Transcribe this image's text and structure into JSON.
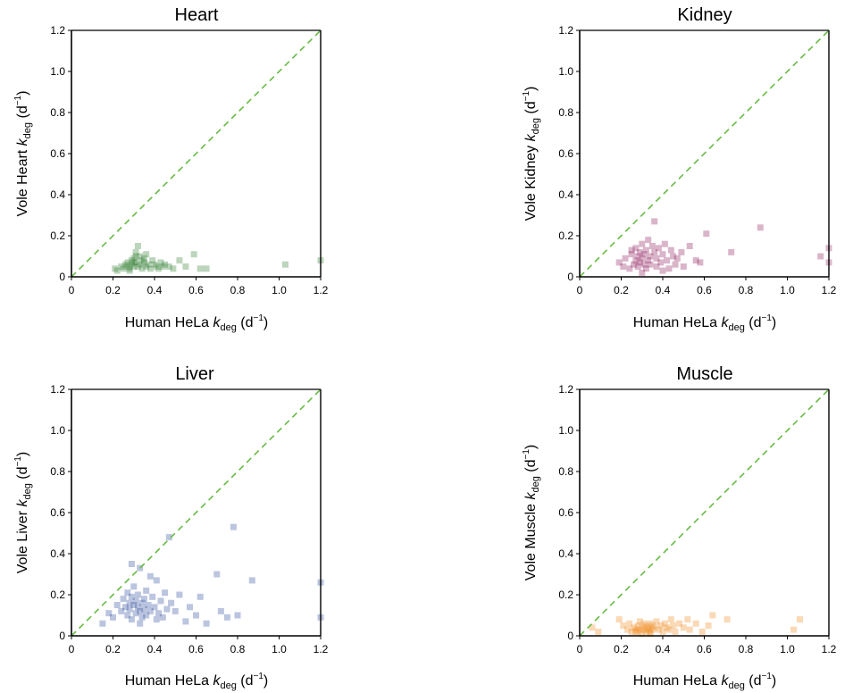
{
  "chart_data": [
    {
      "type": "scatter",
      "title": "Heart",
      "xlabel": {
        "pre": "Human HeLa ",
        "k": "k",
        "sub": "deg",
        "unit": " (d",
        "sup": "−1",
        "close": ")"
      },
      "ylabel": {
        "pre": "Vole Heart ",
        "k": "k",
        "sub": "deg",
        "unit": " (d",
        "sup": "−1",
        "close": ")"
      },
      "xlim": [
        0,
        1.2
      ],
      "ylim": [
        0,
        1.2
      ],
      "xticks": [
        "0",
        "0.2",
        "0.4",
        "0.6",
        "0.8",
        "1.0",
        "1.2"
      ],
      "yticks": [
        "0",
        "0.2",
        "0.4",
        "0.6",
        "0.8",
        "1.0",
        "1.2"
      ],
      "color": "#2e7d2e",
      "reference_line": {
        "style": "dashed",
        "color": "#66bb44",
        "from": [
          0,
          0
        ],
        "to": [
          1.2,
          1.2
        ]
      },
      "x": [
        0.21,
        0.22,
        0.24,
        0.25,
        0.26,
        0.27,
        0.28,
        0.29,
        0.29,
        0.3,
        0.3,
        0.31,
        0.31,
        0.32,
        0.32,
        0.33,
        0.33,
        0.34,
        0.34,
        0.35,
        0.35,
        0.36,
        0.37,
        0.38,
        0.39,
        0.4,
        0.41,
        0.42,
        0.43,
        0.44,
        0.45,
        0.47,
        0.49,
        0.52,
        0.55,
        0.59,
        0.62,
        0.65,
        1.03,
        1.2,
        0.27,
        0.3,
        0.36,
        0.28,
        0.31
      ],
      "y": [
        0.04,
        0.03,
        0.05,
        0.04,
        0.06,
        0.05,
        0.04,
        0.08,
        0.06,
        0.07,
        0.05,
        0.12,
        0.07,
        0.15,
        0.05,
        0.1,
        0.06,
        0.08,
        0.04,
        0.07,
        0.09,
        0.05,
        0.06,
        0.04,
        0.08,
        0.06,
        0.05,
        0.04,
        0.07,
        0.05,
        0.06,
        0.05,
        0.04,
        0.08,
        0.05,
        0.11,
        0.04,
        0.04,
        0.06,
        0.08,
        0.07,
        0.09,
        0.11,
        0.03,
        0.1
      ]
    },
    {
      "type": "scatter",
      "title": "Kidney",
      "xlabel": {
        "pre": "Human HeLa ",
        "k": "k",
        "sub": "deg",
        "unit": " (d",
        "sup": "−1",
        "close": ")"
      },
      "ylabel": {
        "pre": "Vole Kidney ",
        "k": "k",
        "sub": "deg",
        "unit": " (d",
        "sup": "−1",
        "close": ")"
      },
      "xlim": [
        0,
        1.2
      ],
      "ylim": [
        0,
        1.2
      ],
      "xticks": [
        "0",
        "0.2",
        "0.4",
        "0.6",
        "0.8",
        "1.0",
        "1.2"
      ],
      "yticks": [
        "0",
        "0.2",
        "0.4",
        "0.6",
        "0.8",
        "1.0",
        "1.2"
      ],
      "color": "#8b1a5a",
      "reference_line": {
        "style": "dashed",
        "color": "#66bb44",
        "from": [
          0,
          0
        ],
        "to": [
          1.2,
          1.2
        ]
      },
      "x": [
        0.19,
        0.21,
        0.22,
        0.24,
        0.25,
        0.26,
        0.27,
        0.27,
        0.28,
        0.28,
        0.29,
        0.29,
        0.3,
        0.3,
        0.31,
        0.31,
        0.32,
        0.32,
        0.33,
        0.33,
        0.34,
        0.34,
        0.35,
        0.36,
        0.37,
        0.37,
        0.38,
        0.39,
        0.4,
        0.41,
        0.42,
        0.43,
        0.44,
        0.45,
        0.46,
        0.47,
        0.49,
        0.5,
        0.53,
        0.56,
        0.58,
        0.61,
        0.73,
        0.87,
        1.16,
        1.2,
        1.2,
        0.36,
        0.25,
        0.3,
        0.4
      ],
      "y": [
        0.07,
        0.05,
        0.09,
        0.04,
        0.11,
        0.06,
        0.14,
        0.08,
        0.1,
        0.05,
        0.12,
        0.07,
        0.16,
        0.09,
        0.06,
        0.11,
        0.13,
        0.04,
        0.08,
        0.18,
        0.1,
        0.06,
        0.15,
        0.12,
        0.09,
        0.05,
        0.14,
        0.07,
        0.11,
        0.16,
        0.08,
        0.04,
        0.13,
        0.1,
        0.06,
        0.09,
        0.12,
        0.05,
        0.15,
        0.08,
        0.07,
        0.21,
        0.12,
        0.24,
        0.1,
        0.14,
        0.07,
        0.27,
        0.13,
        0.02,
        0.03
      ]
    },
    {
      "type": "scatter",
      "title": "Liver",
      "xlabel": {
        "pre": "Human HeLa ",
        "k": "k",
        "sub": "deg",
        "unit": " (d",
        "sup": "−1",
        "close": ")"
      },
      "ylabel": {
        "pre": "Vole Liver ",
        "k": "k",
        "sub": "deg",
        "unit": " (d",
        "sup": "−1",
        "close": ")"
      },
      "xlim": [
        0,
        1.2
      ],
      "ylim": [
        0,
        1.2
      ],
      "xticks": [
        "0",
        "0.2",
        "0.4",
        "0.6",
        "0.8",
        "1.0",
        "1.2"
      ],
      "yticks": [
        "0",
        "0.2",
        "0.4",
        "0.6",
        "0.8",
        "1.0",
        "1.2"
      ],
      "color": "#2c4a9a",
      "reference_line": {
        "style": "dashed",
        "color": "#66bb44",
        "from": [
          0,
          0
        ],
        "to": [
          1.2,
          1.2
        ]
      },
      "x": [
        0.15,
        0.18,
        0.2,
        0.22,
        0.24,
        0.25,
        0.26,
        0.27,
        0.27,
        0.28,
        0.28,
        0.29,
        0.29,
        0.3,
        0.3,
        0.31,
        0.31,
        0.32,
        0.32,
        0.33,
        0.33,
        0.34,
        0.34,
        0.35,
        0.35,
        0.36,
        0.36,
        0.37,
        0.38,
        0.39,
        0.4,
        0.41,
        0.42,
        0.43,
        0.44,
        0.45,
        0.46,
        0.47,
        0.48,
        0.5,
        0.52,
        0.55,
        0.57,
        0.6,
        0.62,
        0.65,
        0.7,
        0.72,
        0.75,
        0.78,
        0.8,
        0.87,
        1.2,
        1.2,
        0.29,
        0.33,
        0.41,
        0.38
      ],
      "y": [
        0.06,
        0.11,
        0.09,
        0.15,
        0.12,
        0.18,
        0.14,
        0.1,
        0.21,
        0.16,
        0.13,
        0.19,
        0.08,
        0.15,
        0.24,
        0.11,
        0.17,
        0.14,
        0.2,
        0.12,
        0.33,
        0.16,
        0.09,
        0.18,
        0.13,
        0.22,
        0.1,
        0.15,
        0.12,
        0.19,
        0.14,
        0.27,
        0.11,
        0.17,
        0.09,
        0.21,
        0.13,
        0.48,
        0.16,
        0.12,
        0.2,
        0.07,
        0.14,
        0.1,
        0.19,
        0.06,
        0.3,
        0.12,
        0.09,
        0.53,
        0.1,
        0.27,
        0.26,
        0.09,
        0.35,
        0.06,
        0.08,
        0.29
      ]
    },
    {
      "type": "scatter",
      "title": "Muscle",
      "xlabel": {
        "pre": "Human HeLa ",
        "k": "k",
        "sub": "deg",
        "unit": " (d",
        "sup": "−1",
        "close": ")"
      },
      "ylabel": {
        "pre": "Vole Muscle ",
        "k": "k",
        "sub": "deg",
        "unit": " (d",
        "sup": "−1",
        "close": ")"
      },
      "xlim": [
        0,
        1.2
      ],
      "ylim": [
        0,
        1.2
      ],
      "xticks": [
        "0",
        "0.2",
        "0.4",
        "0.6",
        "0.8",
        "1.0",
        "1.2"
      ],
      "yticks": [
        "0",
        "0.2",
        "0.4",
        "0.6",
        "0.8",
        "1.0",
        "1.2"
      ],
      "color": "#f08a1c",
      "reference_line": {
        "style": "dashed",
        "color": "#66bb44",
        "from": [
          0,
          0
        ],
        "to": [
          1.2,
          1.2
        ]
      },
      "x": [
        0.06,
        0.09,
        0.19,
        0.21,
        0.23,
        0.24,
        0.25,
        0.26,
        0.27,
        0.28,
        0.28,
        0.29,
        0.29,
        0.3,
        0.3,
        0.31,
        0.31,
        0.32,
        0.32,
        0.33,
        0.33,
        0.34,
        0.34,
        0.35,
        0.35,
        0.36,
        0.37,
        0.38,
        0.39,
        0.4,
        0.41,
        0.42,
        0.43,
        0.44,
        0.45,
        0.46,
        0.48,
        0.5,
        0.52,
        0.53,
        0.56,
        0.59,
        0.62,
        0.64,
        0.71,
        1.03,
        1.06,
        0.34,
        0.27
      ],
      "y": [
        0.04,
        0.02,
        0.08,
        0.05,
        0.03,
        0.06,
        0.02,
        0.04,
        0.03,
        0.05,
        0.02,
        0.07,
        0.03,
        0.04,
        0.01,
        0.06,
        0.03,
        0.05,
        0.02,
        0.04,
        0.03,
        0.06,
        0.02,
        0.05,
        0.03,
        0.04,
        0.07,
        0.03,
        0.05,
        0.02,
        0.06,
        0.04,
        0.03,
        0.08,
        0.05,
        0.02,
        0.06,
        0.04,
        0.08,
        0.03,
        0.06,
        0.02,
        0.05,
        0.1,
        0.08,
        0.03,
        0.08,
        0.01,
        0.02
      ]
    }
  ]
}
